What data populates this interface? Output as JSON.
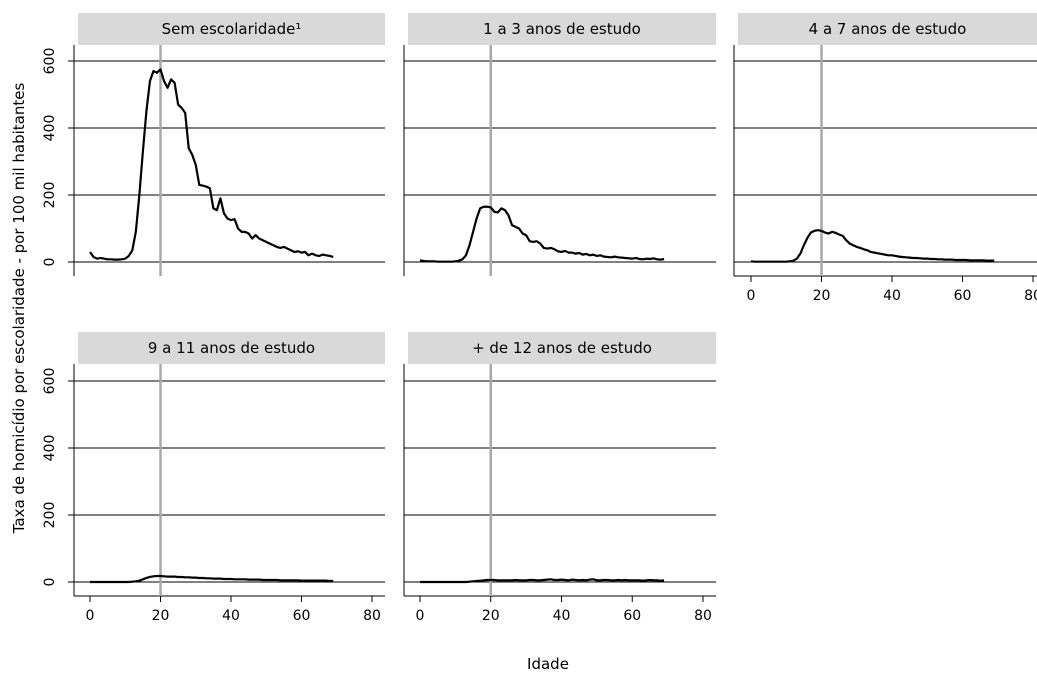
{
  "chart_data": {
    "type": "line",
    "ylabel": "Taxa de homicídio por escolaridade - por 100 mil habitantes",
    "xlabel": "Idade",
    "xlim": [
      0,
      80
    ],
    "ylim": [
      0,
      600
    ],
    "x_ticks": [
      0,
      20,
      40,
      60,
      80
    ],
    "y_ticks": [
      0,
      200,
      400,
      600
    ],
    "reference_line_x": 20,
    "grid": "horizontal",
    "colors": {
      "line": "#000000",
      "reference": "#a8a8a8",
      "grid": "#000000",
      "strip": "#d9d9d9"
    },
    "panels": [
      {
        "title": "Sem escolaridade¹",
        "x": [
          0,
          1,
          2,
          3,
          4,
          5,
          6,
          7,
          8,
          9,
          10,
          11,
          12,
          13,
          14,
          15,
          16,
          17,
          18,
          19,
          20,
          21,
          22,
          23,
          24,
          25,
          26,
          27,
          28,
          29,
          30,
          31,
          32,
          33,
          34,
          35,
          36,
          37,
          38,
          39,
          40,
          41,
          42,
          43,
          44,
          45,
          46,
          47,
          48,
          49,
          50,
          51,
          52,
          53,
          54,
          55,
          56,
          57,
          58,
          59,
          60,
          61,
          62,
          63,
          64,
          65,
          66,
          67,
          68,
          69
        ],
        "y": [
          30,
          15,
          10,
          12,
          10,
          8,
          8,
          7,
          7,
          8,
          10,
          18,
          35,
          90,
          200,
          330,
          450,
          540,
          570,
          565,
          575,
          540,
          520,
          545,
          535,
          470,
          460,
          445,
          340,
          320,
          290,
          230,
          228,
          225,
          220,
          160,
          155,
          190,
          145,
          130,
          125,
          128,
          100,
          90,
          90,
          85,
          70,
          80,
          70,
          65,
          60,
          55,
          50,
          45,
          42,
          45,
          40,
          35,
          30,
          32,
          28,
          30,
          20,
          25,
          20,
          18,
          22,
          20,
          18,
          15
        ]
      },
      {
        "title": "1 a 3 anos de estudo",
        "x": [
          0,
          1,
          2,
          3,
          4,
          5,
          6,
          7,
          8,
          9,
          10,
          11,
          12,
          13,
          14,
          15,
          16,
          17,
          18,
          19,
          20,
          21,
          22,
          23,
          24,
          25,
          26,
          27,
          28,
          29,
          30,
          31,
          32,
          33,
          34,
          35,
          36,
          37,
          38,
          39,
          40,
          41,
          42,
          43,
          44,
          45,
          46,
          47,
          48,
          49,
          50,
          51,
          52,
          53,
          54,
          55,
          56,
          57,
          58,
          59,
          60,
          61,
          62,
          63,
          64,
          65,
          66,
          67,
          68,
          69
        ],
        "y": [
          5,
          3,
          2,
          2,
          2,
          1,
          1,
          1,
          1,
          1,
          2,
          4,
          8,
          20,
          50,
          90,
          130,
          160,
          165,
          165,
          163,
          150,
          148,
          160,
          155,
          140,
          110,
          105,
          100,
          85,
          80,
          62,
          60,
          62,
          55,
          42,
          40,
          42,
          38,
          32,
          30,
          33,
          28,
          28,
          25,
          27,
          22,
          24,
          20,
          22,
          18,
          20,
          16,
          15,
          14,
          16,
          14,
          13,
          12,
          11,
          10,
          12,
          9,
          8,
          10,
          9,
          11,
          8,
          7,
          9
        ]
      },
      {
        "title": "4 a 7 anos de estudo",
        "x": [
          0,
          1,
          2,
          3,
          4,
          5,
          6,
          7,
          8,
          9,
          10,
          11,
          12,
          13,
          14,
          15,
          16,
          17,
          18,
          19,
          20,
          21,
          22,
          23,
          24,
          25,
          26,
          27,
          28,
          29,
          30,
          31,
          32,
          33,
          34,
          35,
          36,
          37,
          38,
          39,
          40,
          41,
          42,
          43,
          44,
          45,
          46,
          47,
          48,
          49,
          50,
          51,
          52,
          53,
          54,
          55,
          56,
          57,
          58,
          59,
          60,
          61,
          62,
          63,
          64,
          65,
          66,
          67,
          68,
          69
        ],
        "y": [
          2,
          1,
          1,
          1,
          1,
          1,
          1,
          1,
          1,
          1,
          1,
          2,
          4,
          10,
          25,
          50,
          72,
          88,
          93,
          95,
          93,
          88,
          85,
          90,
          87,
          82,
          78,
          65,
          55,
          50,
          45,
          42,
          38,
          35,
          30,
          28,
          26,
          24,
          22,
          20,
          20,
          18,
          16,
          15,
          14,
          13,
          12,
          12,
          11,
          10,
          10,
          9,
          9,
          8,
          8,
          7,
          7,
          7,
          6,
          6,
          6,
          6,
          5,
          5,
          5,
          5,
          5,
          4,
          4,
          4
        ]
      },
      {
        "title": "9 a 11 anos de estudo",
        "x": [
          0,
          1,
          2,
          3,
          4,
          5,
          6,
          7,
          8,
          9,
          10,
          11,
          12,
          13,
          14,
          15,
          16,
          17,
          18,
          19,
          20,
          21,
          22,
          23,
          24,
          25,
          26,
          27,
          28,
          29,
          30,
          31,
          32,
          33,
          34,
          35,
          36,
          37,
          38,
          39,
          40,
          41,
          42,
          43,
          44,
          45,
          46,
          47,
          48,
          49,
          50,
          51,
          52,
          53,
          54,
          55,
          56,
          57,
          58,
          59,
          60,
          61,
          62,
          63,
          64,
          65,
          66,
          67,
          68,
          69
        ],
        "y": [
          0,
          0,
          0,
          0,
          0,
          0,
          0,
          0,
          0,
          0,
          0,
          0,
          1,
          2,
          4,
          8,
          12,
          15,
          17,
          18,
          18,
          17,
          16,
          16,
          16,
          15,
          15,
          14,
          14,
          13,
          13,
          12,
          12,
          11,
          11,
          10,
          10,
          10,
          9,
          9,
          9,
          8,
          8,
          8,
          8,
          7,
          7,
          7,
          7,
          6,
          6,
          6,
          6,
          6,
          5,
          5,
          5,
          5,
          5,
          5,
          4,
          4,
          4,
          4,
          4,
          4,
          4,
          4,
          3,
          3
        ]
      },
      {
        "title": "+ de 12 anos de estudo",
        "x": [
          0,
          1,
          2,
          3,
          4,
          5,
          6,
          7,
          8,
          9,
          10,
          11,
          12,
          13,
          14,
          15,
          16,
          17,
          18,
          19,
          20,
          21,
          22,
          23,
          24,
          25,
          26,
          27,
          28,
          29,
          30,
          31,
          32,
          33,
          34,
          35,
          36,
          37,
          38,
          39,
          40,
          41,
          42,
          43,
          44,
          45,
          46,
          47,
          48,
          49,
          50,
          51,
          52,
          53,
          54,
          55,
          56,
          57,
          58,
          59,
          60,
          61,
          62,
          63,
          64,
          65,
          66,
          67,
          68,
          69
        ],
        "y": [
          0,
          0,
          0,
          0,
          0,
          0,
          0,
          0,
          0,
          0,
          0,
          0,
          0,
          0,
          1,
          2,
          3,
          4,
          5,
          6,
          6,
          6,
          5,
          5,
          5,
          5,
          5,
          6,
          5,
          5,
          5,
          6,
          6,
          5,
          5,
          6,
          7,
          8,
          6,
          6,
          7,
          6,
          5,
          7,
          6,
          5,
          6,
          5,
          7,
          8,
          5,
          5,
          6,
          6,
          5,
          5,
          6,
          5,
          6,
          5,
          5,
          5,
          5,
          4,
          5,
          6,
          5,
          5,
          4,
          5
        ]
      }
    ]
  }
}
